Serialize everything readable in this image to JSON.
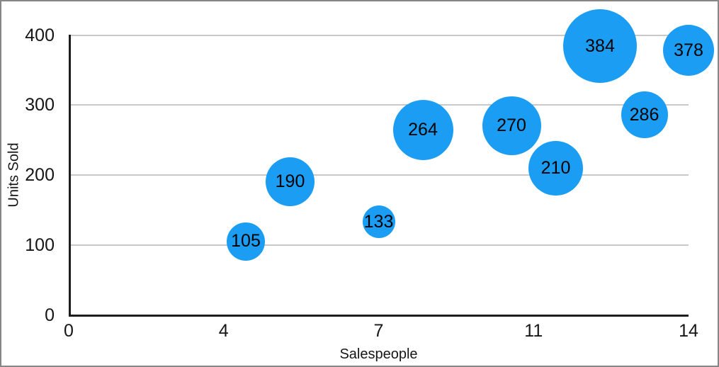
{
  "chart_data": {
    "type": "scatter",
    "subtype": "bubble",
    "title": "",
    "xlabel": "Salespeople",
    "ylabel": "Units Sold",
    "xlim": [
      0,
      14
    ],
    "ylim": [
      0,
      400
    ],
    "grid": "horizontal-only",
    "legend_position": "none",
    "x_ticks": [
      {
        "value": 0,
        "label": "0"
      },
      {
        "value": 3.5,
        "label": "4"
      },
      {
        "value": 7,
        "label": "7"
      },
      {
        "value": 10.5,
        "label": "11"
      },
      {
        "value": 14,
        "label": "14"
      }
    ],
    "y_ticks": [
      {
        "value": 0,
        "label": "0"
      },
      {
        "value": 100,
        "label": "100"
      },
      {
        "value": 200,
        "label": "200"
      },
      {
        "value": 300,
        "label": "300"
      },
      {
        "value": 400,
        "label": "400"
      }
    ],
    "series": [
      {
        "name": "Units Sold",
        "color": "#1A9DF2",
        "points": [
          {
            "x": 4,
            "y": 105,
            "label": "105",
            "bubble_radius_px": 27
          },
          {
            "x": 5,
            "y": 190,
            "label": "190",
            "bubble_radius_px": 34.5
          },
          {
            "x": 7,
            "y": 133,
            "label": "133",
            "bubble_radius_px": 23
          },
          {
            "x": 8,
            "y": 264,
            "label": "264",
            "bubble_radius_px": 42.5
          },
          {
            "x": 10,
            "y": 270,
            "label": "270",
            "bubble_radius_px": 41.5
          },
          {
            "x": 11,
            "y": 210,
            "label": "210",
            "bubble_radius_px": 38.5
          },
          {
            "x": 12,
            "y": 384,
            "label": "384",
            "bubble_radius_px": 52
          },
          {
            "x": 13,
            "y": 286,
            "label": "286",
            "bubble_radius_px": 33
          },
          {
            "x": 14,
            "y": 378,
            "label": "378",
            "bubble_radius_px": 36
          }
        ]
      }
    ],
    "colors": {
      "bubble_fill": "#1A9DF2",
      "bubble_label_text": "#000000",
      "gridline": "#C9C9C9",
      "axis_line": "#1D1D1D",
      "tick_label_text": "#161616",
      "axis_title_text": "#161616",
      "background": "#FFFFFF",
      "frame_border": "#868686"
    }
  }
}
